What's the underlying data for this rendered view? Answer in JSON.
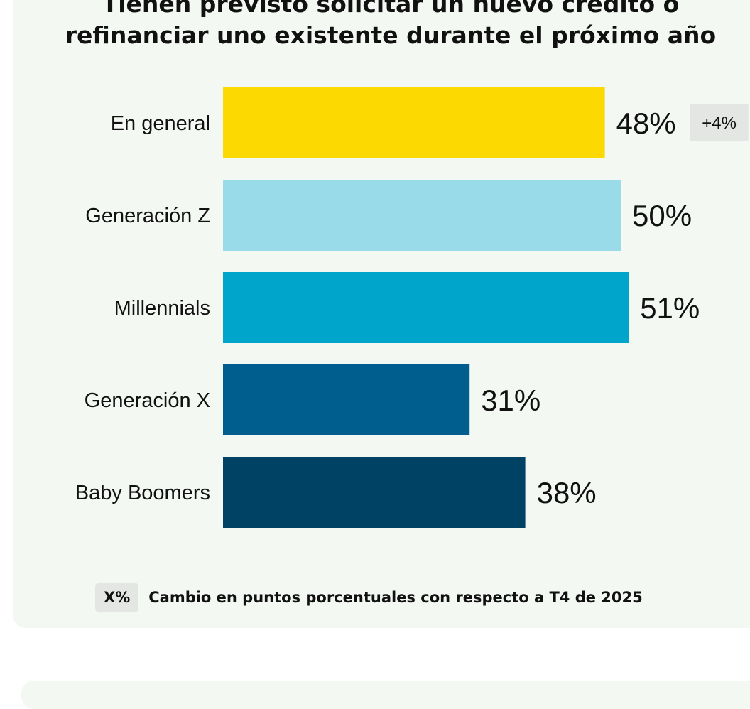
{
  "title": {
    "line1": "Tienen previsto solicitar un nuevo crédito o",
    "line2": "refinanciar uno existente durante el próximo año"
  },
  "chart_data": {
    "type": "bar",
    "orientation": "horizontal",
    "categories": [
      "En general",
      "Generación Z",
      "Millennials",
      "Generación X",
      "Baby Boomers"
    ],
    "values": [
      48,
      50,
      51,
      31,
      38
    ],
    "value_labels": [
      "48%",
      "50%",
      "51%",
      "31%",
      "38%"
    ],
    "colors": [
      "#fcd900",
      "#9adbea",
      "#00a5cb",
      "#005e8e",
      "#004263"
    ],
    "changes": [
      "+4%",
      null,
      null,
      null,
      null
    ],
    "unit": "%",
    "xlim": [
      0,
      100
    ],
    "grid": false
  },
  "legend": {
    "swatch_label": "X%",
    "text": "Cambio en puntos porcentuales con respecto a T4 de 2025"
  }
}
